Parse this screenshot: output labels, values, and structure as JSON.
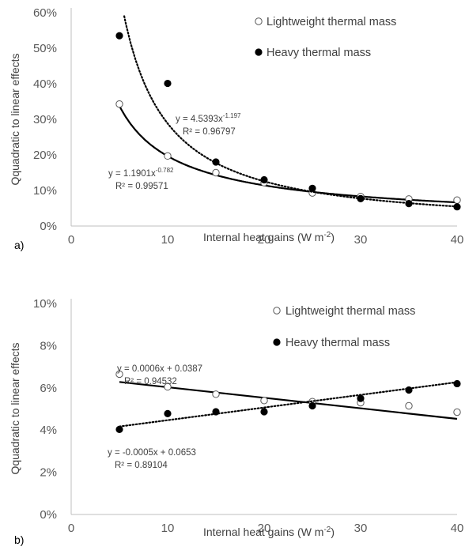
{
  "chart_data": [
    {
      "type": "scatter",
      "panel_label": "a)",
      "xlabel": "Internal heat gains (W m",
      "xlabel_sup": "-2",
      "xlabel_end": ")",
      "ylabel": "Qquadratic to linear effects",
      "xlim": [
        0,
        40
      ],
      "ylim": [
        0,
        0.6
      ],
      "x_ticks": [
        0,
        10,
        20,
        30,
        40
      ],
      "x_tick_labels": [
        "0",
        "10",
        "20",
        "30",
        "40"
      ],
      "y_ticks": [
        0,
        0.1,
        0.2,
        0.3,
        0.4,
        0.5,
        0.6
      ],
      "y_tick_labels": [
        "0%",
        "10%",
        "20%",
        "30%",
        "40%",
        "50%",
        "60%"
      ],
      "grid": false,
      "legend_position": "top-right",
      "series": [
        {
          "name": "Lightweight thermal mass",
          "marker": "open-circle",
          "x": [
            5,
            10,
            15,
            20,
            25,
            30,
            35,
            40
          ],
          "y": [
            0.343,
            0.197,
            0.15,
            0.122,
            0.093,
            0.083,
            0.076,
            0.073
          ],
          "trendline": {
            "kind": "power",
            "a": 1.1901,
            "b": -0.782,
            "style": "solid",
            "eq_main": "y = 1.1901x",
            "eq_sup": "-0.782",
            "r2": "R² = 0.99571"
          }
        },
        {
          "name": "Heavy thermal mass",
          "marker": "filled-circle",
          "x": [
            5,
            10,
            15,
            20,
            25,
            30,
            35,
            40
          ],
          "y": [
            0.535,
            0.401,
            0.18,
            0.13,
            0.106,
            0.077,
            0.063,
            0.054
          ],
          "trendline": {
            "kind": "power",
            "a": 4.5393,
            "b": -1.197,
            "style": "dotted",
            "eq_main": "y = 4.5393x",
            "eq_sup": "-1.197",
            "r2": "R² = 0.96797"
          }
        }
      ]
    },
    {
      "type": "scatter",
      "panel_label": "b)",
      "xlabel": "Internal heat gains (W m",
      "xlabel_sup": "-2",
      "xlabel_end": ")",
      "ylabel": "Qquadratic to linear effects",
      "xlim": [
        0,
        40
      ],
      "ylim": [
        0,
        0.1
      ],
      "x_ticks": [
        0,
        10,
        20,
        30,
        40
      ],
      "x_tick_labels": [
        "0",
        "10",
        "20",
        "30",
        "40"
      ],
      "y_ticks": [
        0,
        0.02,
        0.04,
        0.06,
        0.08,
        0.1
      ],
      "y_tick_labels": [
        "0%",
        "2%",
        "4%",
        "6%",
        "8%",
        "10%"
      ],
      "grid": false,
      "legend_position": "top-right",
      "series": [
        {
          "name": "Lightweight thermal mass",
          "marker": "open-circle",
          "x": [
            5,
            10,
            15,
            20,
            25,
            30,
            35,
            40
          ],
          "y": [
            0.0665,
            0.0605,
            0.057,
            0.054,
            0.0535,
            0.053,
            0.0515,
            0.0485
          ],
          "trendline": {
            "kind": "linear",
            "m": -0.0005,
            "c": 0.0653,
            "style": "solid",
            "eq_main": "y = -0.0005x + 0.0653",
            "eq_sup": "",
            "r2": "R² = 0.89104"
          }
        },
        {
          "name": "Heavy thermal mass",
          "marker": "filled-circle",
          "x": [
            5,
            10,
            15,
            20,
            25,
            30,
            35,
            40
          ],
          "y": [
            0.0403,
            0.0478,
            0.0487,
            0.0487,
            0.0515,
            0.055,
            0.059,
            0.062
          ],
          "trendline": {
            "kind": "linear",
            "m": 0.0006,
            "c": 0.0387,
            "style": "dotted",
            "eq_main": "y = 0.0006x + 0.0387",
            "eq_sup": "",
            "r2": "R² = 0.94532"
          }
        }
      ]
    }
  ]
}
